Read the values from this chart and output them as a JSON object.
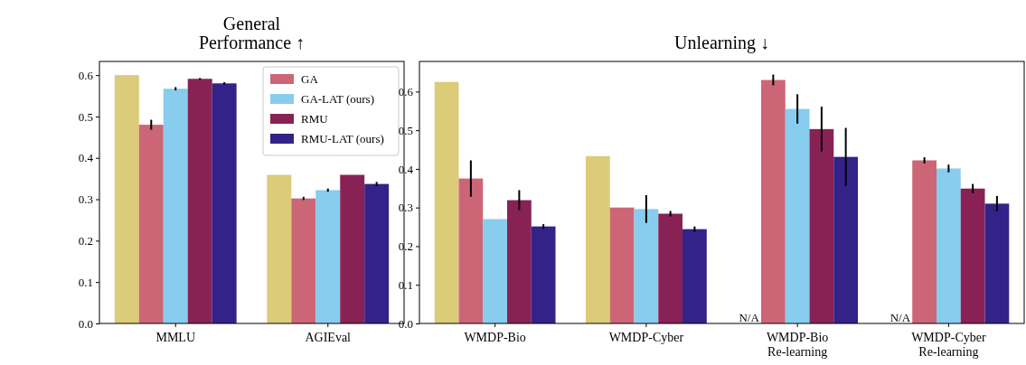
{
  "chart_data": [
    {
      "type": "bar",
      "title": "General\nPerformance ↑",
      "categories": [
        "MMLU",
        "AGIEval"
      ],
      "ylim": [
        0,
        0.633
      ],
      "yticks": [
        {
          "value": 0,
          "label": "0.0"
        },
        0.1,
        0.2,
        0.3,
        0.4,
        0.5,
        0.6
      ],
      "legend": "top right",
      "series": [
        {
          "color": "#dccb78",
          "values": [
            0.6,
            0.359
          ]
        },
        {
          "name": "GA",
          "color": "#cc6677",
          "values": [
            0.48,
            0.302
          ],
          "errors": [
            0.012,
            0.004
          ]
        },
        {
          "name": "GA-LAT (ours)",
          "color": "#88ccee",
          "values": [
            0.567,
            0.322
          ],
          "errors": [
            0.004,
            0.004
          ]
        },
        {
          "name": "RMU",
          "color": "#882255",
          "values": [
            0.591,
            0.359
          ],
          "errors": [
            0.002,
            null
          ]
        },
        {
          "name": "RMU-LAT (ours)",
          "color": "#332288",
          "values": [
            0.58,
            0.337
          ],
          "errors": [
            0.003,
            0.005
          ]
        }
      ]
    },
    {
      "type": "bar",
      "title": "Unlearning ↓",
      "categories": [
        "WMDP-Bio",
        "WMDP-Cyber",
        "WMDP-Bio\nRe-learning",
        "WMDP-Cyber\nRe-learning"
      ],
      "ylim": [
        0,
        0.678
      ],
      "yticks": [
        {
          "value": 0,
          "label": "0.0"
        },
        0.1,
        0.2,
        0.3,
        0.4,
        0.5,
        0.6
      ],
      "annotations": [
        "N/A",
        "N/A"
      ],
      "series": [
        {
          "color": "#dccb78",
          "values": [
            0.625,
            0.433,
            null,
            null
          ]
        },
        {
          "color": "#cc6677",
          "values": [
            0.375,
            0.3,
            0.63,
            0.422
          ],
          "errors": [
            0.047,
            null,
            0.014,
            0.008
          ]
        },
        {
          "color": "#88ccee",
          "values": [
            0.27,
            0.296,
            0.555,
            0.401
          ],
          "errors": [
            null,
            0.036,
            0.038,
            0.01
          ]
        },
        {
          "color": "#882255",
          "values": [
            0.319,
            0.284,
            0.503,
            0.349
          ],
          "errors": [
            0.026,
            0.007,
            0.058,
            0.012
          ]
        },
        {
          "color": "#332288",
          "values": [
            0.251,
            0.244,
            0.431,
            0.31
          ],
          "errors": [
            0.006,
            0.007,
            0.075,
            0.02
          ]
        }
      ]
    }
  ]
}
